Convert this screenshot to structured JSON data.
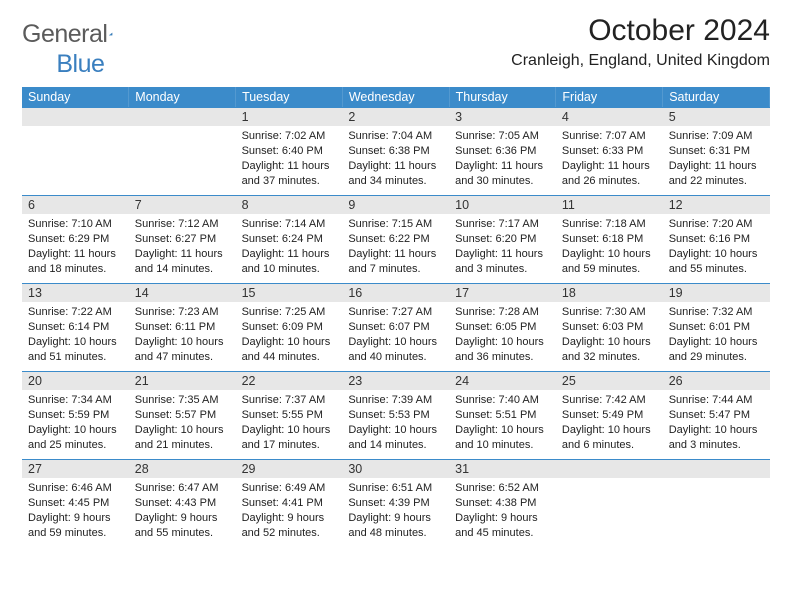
{
  "brand": {
    "part1": "General",
    "part2": "Blue"
  },
  "title": "October 2024",
  "location": "Cranleigh, England, United Kingdom",
  "colors": {
    "header_bg": "#3b8bca",
    "daynum_bg": "#e7e7e7",
    "border": "#3b8bca",
    "text": "#222222",
    "logo_gray": "#5b5b5b",
    "logo_blue": "#3a7fbf"
  },
  "weekdays": [
    "Sunday",
    "Monday",
    "Tuesday",
    "Wednesday",
    "Thursday",
    "Friday",
    "Saturday"
  ],
  "weeks": [
    [
      null,
      null,
      {
        "day": "1",
        "sunrise": "Sunrise: 7:02 AM",
        "sunset": "Sunset: 6:40 PM",
        "daylight": "Daylight: 11 hours and 37 minutes."
      },
      {
        "day": "2",
        "sunrise": "Sunrise: 7:04 AM",
        "sunset": "Sunset: 6:38 PM",
        "daylight": "Daylight: 11 hours and 34 minutes."
      },
      {
        "day": "3",
        "sunrise": "Sunrise: 7:05 AM",
        "sunset": "Sunset: 6:36 PM",
        "daylight": "Daylight: 11 hours and 30 minutes."
      },
      {
        "day": "4",
        "sunrise": "Sunrise: 7:07 AM",
        "sunset": "Sunset: 6:33 PM",
        "daylight": "Daylight: 11 hours and 26 minutes."
      },
      {
        "day": "5",
        "sunrise": "Sunrise: 7:09 AM",
        "sunset": "Sunset: 6:31 PM",
        "daylight": "Daylight: 11 hours and 22 minutes."
      }
    ],
    [
      {
        "day": "6",
        "sunrise": "Sunrise: 7:10 AM",
        "sunset": "Sunset: 6:29 PM",
        "daylight": "Daylight: 11 hours and 18 minutes."
      },
      {
        "day": "7",
        "sunrise": "Sunrise: 7:12 AM",
        "sunset": "Sunset: 6:27 PM",
        "daylight": "Daylight: 11 hours and 14 minutes."
      },
      {
        "day": "8",
        "sunrise": "Sunrise: 7:14 AM",
        "sunset": "Sunset: 6:24 PM",
        "daylight": "Daylight: 11 hours and 10 minutes."
      },
      {
        "day": "9",
        "sunrise": "Sunrise: 7:15 AM",
        "sunset": "Sunset: 6:22 PM",
        "daylight": "Daylight: 11 hours and 7 minutes."
      },
      {
        "day": "10",
        "sunrise": "Sunrise: 7:17 AM",
        "sunset": "Sunset: 6:20 PM",
        "daylight": "Daylight: 11 hours and 3 minutes."
      },
      {
        "day": "11",
        "sunrise": "Sunrise: 7:18 AM",
        "sunset": "Sunset: 6:18 PM",
        "daylight": "Daylight: 10 hours and 59 minutes."
      },
      {
        "day": "12",
        "sunrise": "Sunrise: 7:20 AM",
        "sunset": "Sunset: 6:16 PM",
        "daylight": "Daylight: 10 hours and 55 minutes."
      }
    ],
    [
      {
        "day": "13",
        "sunrise": "Sunrise: 7:22 AM",
        "sunset": "Sunset: 6:14 PM",
        "daylight": "Daylight: 10 hours and 51 minutes."
      },
      {
        "day": "14",
        "sunrise": "Sunrise: 7:23 AM",
        "sunset": "Sunset: 6:11 PM",
        "daylight": "Daylight: 10 hours and 47 minutes."
      },
      {
        "day": "15",
        "sunrise": "Sunrise: 7:25 AM",
        "sunset": "Sunset: 6:09 PM",
        "daylight": "Daylight: 10 hours and 44 minutes."
      },
      {
        "day": "16",
        "sunrise": "Sunrise: 7:27 AM",
        "sunset": "Sunset: 6:07 PM",
        "daylight": "Daylight: 10 hours and 40 minutes."
      },
      {
        "day": "17",
        "sunrise": "Sunrise: 7:28 AM",
        "sunset": "Sunset: 6:05 PM",
        "daylight": "Daylight: 10 hours and 36 minutes."
      },
      {
        "day": "18",
        "sunrise": "Sunrise: 7:30 AM",
        "sunset": "Sunset: 6:03 PM",
        "daylight": "Daylight: 10 hours and 32 minutes."
      },
      {
        "day": "19",
        "sunrise": "Sunrise: 7:32 AM",
        "sunset": "Sunset: 6:01 PM",
        "daylight": "Daylight: 10 hours and 29 minutes."
      }
    ],
    [
      {
        "day": "20",
        "sunrise": "Sunrise: 7:34 AM",
        "sunset": "Sunset: 5:59 PM",
        "daylight": "Daylight: 10 hours and 25 minutes."
      },
      {
        "day": "21",
        "sunrise": "Sunrise: 7:35 AM",
        "sunset": "Sunset: 5:57 PM",
        "daylight": "Daylight: 10 hours and 21 minutes."
      },
      {
        "day": "22",
        "sunrise": "Sunrise: 7:37 AM",
        "sunset": "Sunset: 5:55 PM",
        "daylight": "Daylight: 10 hours and 17 minutes."
      },
      {
        "day": "23",
        "sunrise": "Sunrise: 7:39 AM",
        "sunset": "Sunset: 5:53 PM",
        "daylight": "Daylight: 10 hours and 14 minutes."
      },
      {
        "day": "24",
        "sunrise": "Sunrise: 7:40 AM",
        "sunset": "Sunset: 5:51 PM",
        "daylight": "Daylight: 10 hours and 10 minutes."
      },
      {
        "day": "25",
        "sunrise": "Sunrise: 7:42 AM",
        "sunset": "Sunset: 5:49 PM",
        "daylight": "Daylight: 10 hours and 6 minutes."
      },
      {
        "day": "26",
        "sunrise": "Sunrise: 7:44 AM",
        "sunset": "Sunset: 5:47 PM",
        "daylight": "Daylight: 10 hours and 3 minutes."
      }
    ],
    [
      {
        "day": "27",
        "sunrise": "Sunrise: 6:46 AM",
        "sunset": "Sunset: 4:45 PM",
        "daylight": "Daylight: 9 hours and 59 minutes."
      },
      {
        "day": "28",
        "sunrise": "Sunrise: 6:47 AM",
        "sunset": "Sunset: 4:43 PM",
        "daylight": "Daylight: 9 hours and 55 minutes."
      },
      {
        "day": "29",
        "sunrise": "Sunrise: 6:49 AM",
        "sunset": "Sunset: 4:41 PM",
        "daylight": "Daylight: 9 hours and 52 minutes."
      },
      {
        "day": "30",
        "sunrise": "Sunrise: 6:51 AM",
        "sunset": "Sunset: 4:39 PM",
        "daylight": "Daylight: 9 hours and 48 minutes."
      },
      {
        "day": "31",
        "sunrise": "Sunrise: 6:52 AM",
        "sunset": "Sunset: 4:38 PM",
        "daylight": "Daylight: 9 hours and 45 minutes."
      },
      null,
      null
    ]
  ]
}
